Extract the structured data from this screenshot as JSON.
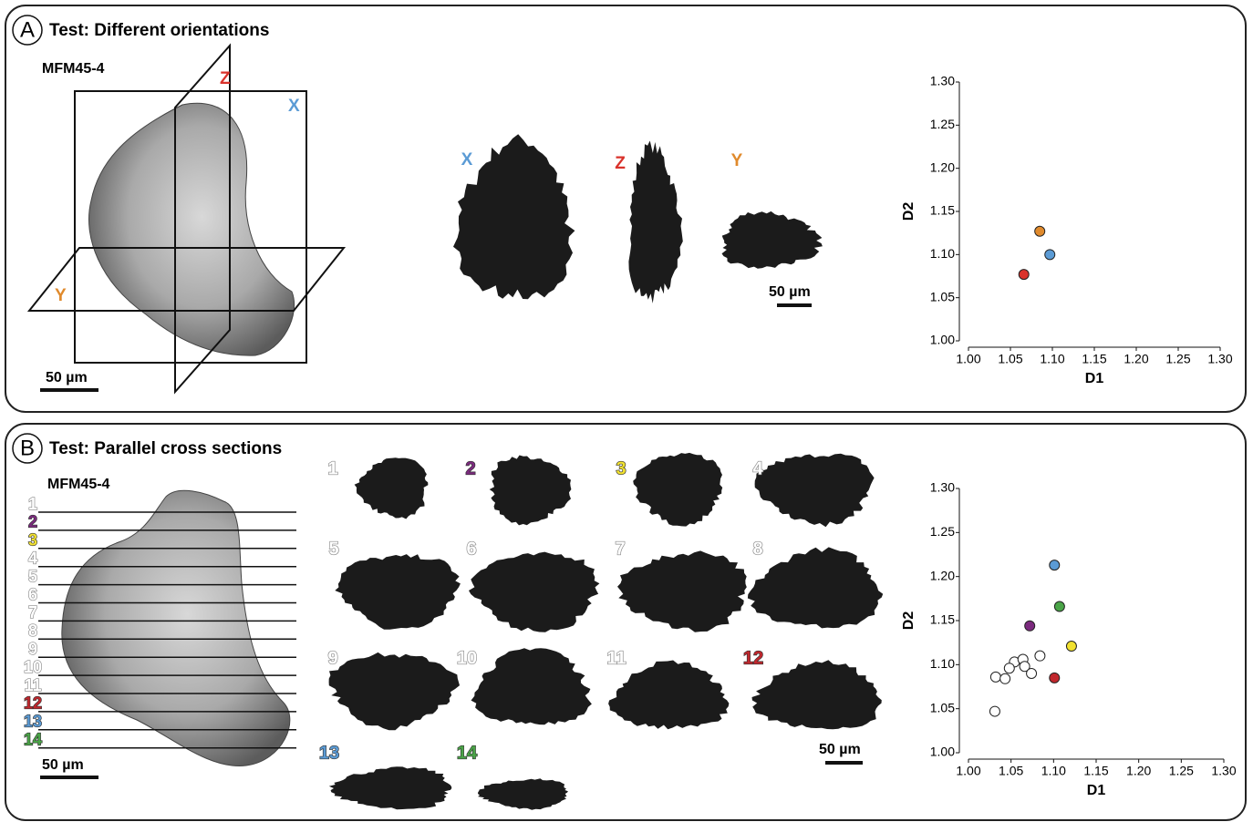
{
  "panel_a": {
    "letter": "A",
    "title": "Test: Different orientations",
    "specimen": "MFM45-4",
    "planes": [
      "Z",
      "X",
      "Y"
    ],
    "plane_colors": [
      "#d9322b",
      "#5b9bd5",
      "#e08a2c"
    ],
    "sections": [
      "X",
      "Z",
      "Y"
    ],
    "section_colors": [
      "#5b9bd5",
      "#d9322b",
      "#e08a2c"
    ],
    "scale_bars": [
      "50 µm",
      "50 µm"
    ]
  },
  "panel_b": {
    "letter": "B",
    "title": "Test: Parallel cross sections",
    "specimen": "MFM45-4",
    "sections": [
      "1",
      "2",
      "3",
      "4",
      "5",
      "6",
      "7",
      "8",
      "9",
      "10",
      "11",
      "12",
      "13",
      "14"
    ],
    "section_colors": [
      "#ffffff",
      "#7b2a7e",
      "#f1e130",
      "#ffffff",
      "#ffffff",
      "#ffffff",
      "#ffffff",
      "#ffffff",
      "#ffffff",
      "#ffffff",
      "#ffffff",
      "#c1272d",
      "#5b9bd5",
      "#4aa447"
    ],
    "scale_bars": [
      "50 µm",
      "50 µm"
    ]
  },
  "chart_data": [
    {
      "type": "scatter",
      "xlabel": "D1",
      "ylabel": "D2",
      "x": [
        1.085,
        1.097,
        1.066
      ],
      "values": [
        1.127,
        1.1,
        1.077
      ],
      "colors": [
        "#e08a2c",
        "#5b9bd5",
        "#d9322b"
      ],
      "xlim": [
        1.0,
        1.3
      ],
      "ylim": [
        1.0,
        1.3
      ],
      "xticks": [
        {
          "value": 1.0,
          "label": "1.00"
        },
        {
          "value": 1.05,
          "label": "1.05"
        },
        {
          "value": 1.1,
          "label": "1.10"
        },
        {
          "value": 1.15,
          "label": "1.15"
        },
        {
          "value": 1.2,
          "label": "1.20"
        },
        {
          "value": 1.25,
          "label": "1.25"
        },
        {
          "value": 1.3,
          "label": "1.30"
        }
      ],
      "yticks": [
        {
          "value": 1.0,
          "label": "1.00"
        },
        {
          "value": 1.05,
          "label": "1.05"
        },
        {
          "value": 1.1,
          "label": "1.10"
        },
        {
          "value": 1.15,
          "label": "1.15"
        },
        {
          "value": 1.2,
          "label": "1.20"
        },
        {
          "value": 1.25,
          "label": "1.25"
        },
        {
          "value": 1.3,
          "label": "1.30"
        }
      ]
    },
    {
      "type": "scatter",
      "xlabel": "D1",
      "ylabel": "D2",
      "x": [
        1.032,
        1.043,
        1.054,
        1.048,
        1.064,
        1.066,
        1.074,
        1.084,
        1.031,
        1.072,
        1.121,
        1.101,
        1.101,
        1.107
      ],
      "values": [
        1.086,
        1.084,
        1.103,
        1.096,
        1.106,
        1.098,
        1.09,
        1.11,
        1.047,
        1.144,
        1.121,
        1.085,
        1.213,
        1.166
      ],
      "colors": [
        "#ffffff",
        "#ffffff",
        "#ffffff",
        "#ffffff",
        "#ffffff",
        "#ffffff",
        "#ffffff",
        "#ffffff",
        "#ffffff",
        "#7b2a7e",
        "#f1e130",
        "#c1272d",
        "#5b9bd5",
        "#4aa447"
      ],
      "xlim": [
        1.0,
        1.3
      ],
      "ylim": [
        1.0,
        1.3
      ],
      "xticks": [
        {
          "value": 1.0,
          "label": "1.00"
        },
        {
          "value": 1.05,
          "label": "1.05"
        },
        {
          "value": 1.1,
          "label": "1.10"
        },
        {
          "value": 1.15,
          "label": "1.15"
        },
        {
          "value": 1.2,
          "label": "1.20"
        },
        {
          "value": 1.25,
          "label": "1.25"
        },
        {
          "value": 1.3,
          "label": "1.30"
        }
      ],
      "yticks": [
        {
          "value": 1.0,
          "label": "1.00"
        },
        {
          "value": 1.05,
          "label": "1.05"
        },
        {
          "value": 1.1,
          "label": "1.10"
        },
        {
          "value": 1.15,
          "label": "1.15"
        },
        {
          "value": 1.2,
          "label": "1.20"
        },
        {
          "value": 1.25,
          "label": "1.25"
        },
        {
          "value": 1.3,
          "label": "1.30"
        }
      ]
    }
  ]
}
